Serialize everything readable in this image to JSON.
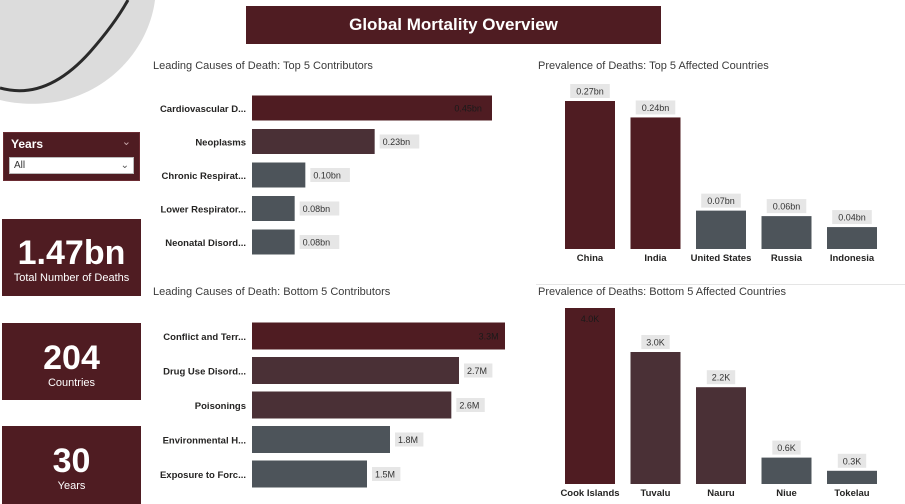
{
  "header": {
    "title": "Global Mortality Overview"
  },
  "slicer": {
    "label": "Years",
    "selected": "All"
  },
  "kpis": [
    {
      "value": "1.47bn",
      "label": "Total Number of Deaths"
    },
    {
      "value": "204",
      "label": "Countries"
    },
    {
      "value": "30",
      "label": "Years"
    }
  ],
  "colors": {
    "primary": "#4f1c22",
    "bar_dark": "#4f1c22",
    "bar_mid": "#4a3036",
    "bar_grey": "#4d545a",
    "label_bg": "#e6e6e6"
  },
  "chart_data": [
    {
      "id": "top-causes",
      "type": "bar",
      "orientation": "horizontal",
      "title": "Leading Causes of Death: Top 5 Contributors",
      "categories": [
        "Cardiovascular D...",
        "Neoplasms",
        "Chronic Respirat...",
        "Lower Respirator...",
        "Neonatal Disord..."
      ],
      "values": [
        0.45,
        0.23,
        0.1,
        0.08,
        0.08
      ],
      "labels": [
        "0.45bn",
        "0.23bn",
        "0.10bn",
        "0.08bn",
        "0.08bn"
      ],
      "unit": "bn"
    },
    {
      "id": "top-countries",
      "type": "bar",
      "orientation": "vertical",
      "title": "Prevalence of Deaths: Top 5 Affected Countries",
      "categories": [
        "China",
        "India",
        "United States",
        "Russia",
        "Indonesia"
      ],
      "values": [
        0.27,
        0.24,
        0.07,
        0.06,
        0.04
      ],
      "labels": [
        "0.27bn",
        "0.24bn",
        "0.07bn",
        "0.06bn",
        "0.04bn"
      ],
      "unit": "bn"
    },
    {
      "id": "bottom-causes",
      "type": "bar",
      "orientation": "horizontal",
      "title": "Leading Causes of Death: Bottom 5 Contributors",
      "categories": [
        "Conflict and Terr...",
        "Drug Use Disord...",
        "Poisonings",
        "Environmental H...",
        "Exposure to Forc..."
      ],
      "values": [
        3.3,
        2.7,
        2.6,
        1.8,
        1.5
      ],
      "labels": [
        "3.3M",
        "2.7M",
        "2.6M",
        "1.8M",
        "1.5M"
      ],
      "unit": "M"
    },
    {
      "id": "bottom-countries",
      "type": "bar",
      "orientation": "vertical",
      "title": "Prevalence of Deaths: Bottom 5 Affected Countries",
      "categories": [
        "Cook Islands",
        "Tuvalu",
        "Nauru",
        "Niue",
        "Tokelau"
      ],
      "values": [
        4.0,
        3.0,
        2.2,
        0.6,
        0.3
      ],
      "labels": [
        "4.0K",
        "3.0K",
        "2.2K",
        "0.6K",
        "0.3K"
      ],
      "unit": "K"
    }
  ]
}
